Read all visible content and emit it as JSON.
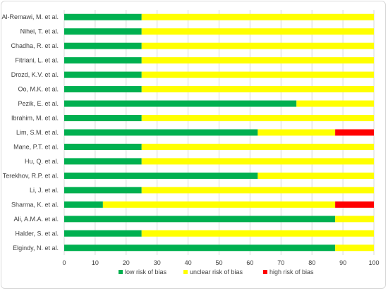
{
  "chart_data": {
    "type": "bar",
    "orientation": "horizontal",
    "stacked": true,
    "title": "",
    "xlabel": "",
    "ylabel": "",
    "xlim": [
      0,
      100
    ],
    "x_ticks": [
      "0",
      "10",
      "20",
      "30",
      "40",
      "50",
      "60",
      "70",
      "80",
      "90",
      "100"
    ],
    "grid": true,
    "legend_position": "bottom",
    "categories": [
      "Al-Remawi, M. et al.",
      "Nihei, T. et al.",
      "Chadha, R. et al.",
      "Fitriani, L. et al.",
      "Drozd, K.V. et al.",
      "Oo, M.K. et al.",
      "Pezik, E. et al.",
      "Ibrahim, M. et al.",
      "Lim, S.M. et al.",
      "Mane, P.T. et al.",
      "Hu, Q. et al.",
      "Terekhov, R.P. et al.",
      "Li, J. et al.",
      "Sharma, K. et al.",
      "Ali, A.M.A. et al.",
      "Halder, S. et al.",
      "Elgindy, N. et al."
    ],
    "series": [
      {
        "name": "low risk of bias",
        "color": "#00b050",
        "values": [
          25,
          25,
          25,
          25,
          25,
          25,
          75,
          25,
          62.5,
          25,
          25,
          62.5,
          25,
          12.5,
          87.5,
          25,
          87.5
        ]
      },
      {
        "name": "unclear risk of bias",
        "color": "#ffff00",
        "values": [
          75,
          75,
          75,
          75,
          75,
          75,
          25,
          75,
          25,
          75,
          75,
          37.5,
          75,
          75,
          12.5,
          75,
          12.5
        ]
      },
      {
        "name": "high risk of bias",
        "color": "#ff0000",
        "values": [
          0,
          0,
          0,
          0,
          0,
          0,
          0,
          0,
          12.5,
          0,
          0,
          0,
          0,
          12.5,
          0,
          0,
          0
        ]
      }
    ]
  }
}
